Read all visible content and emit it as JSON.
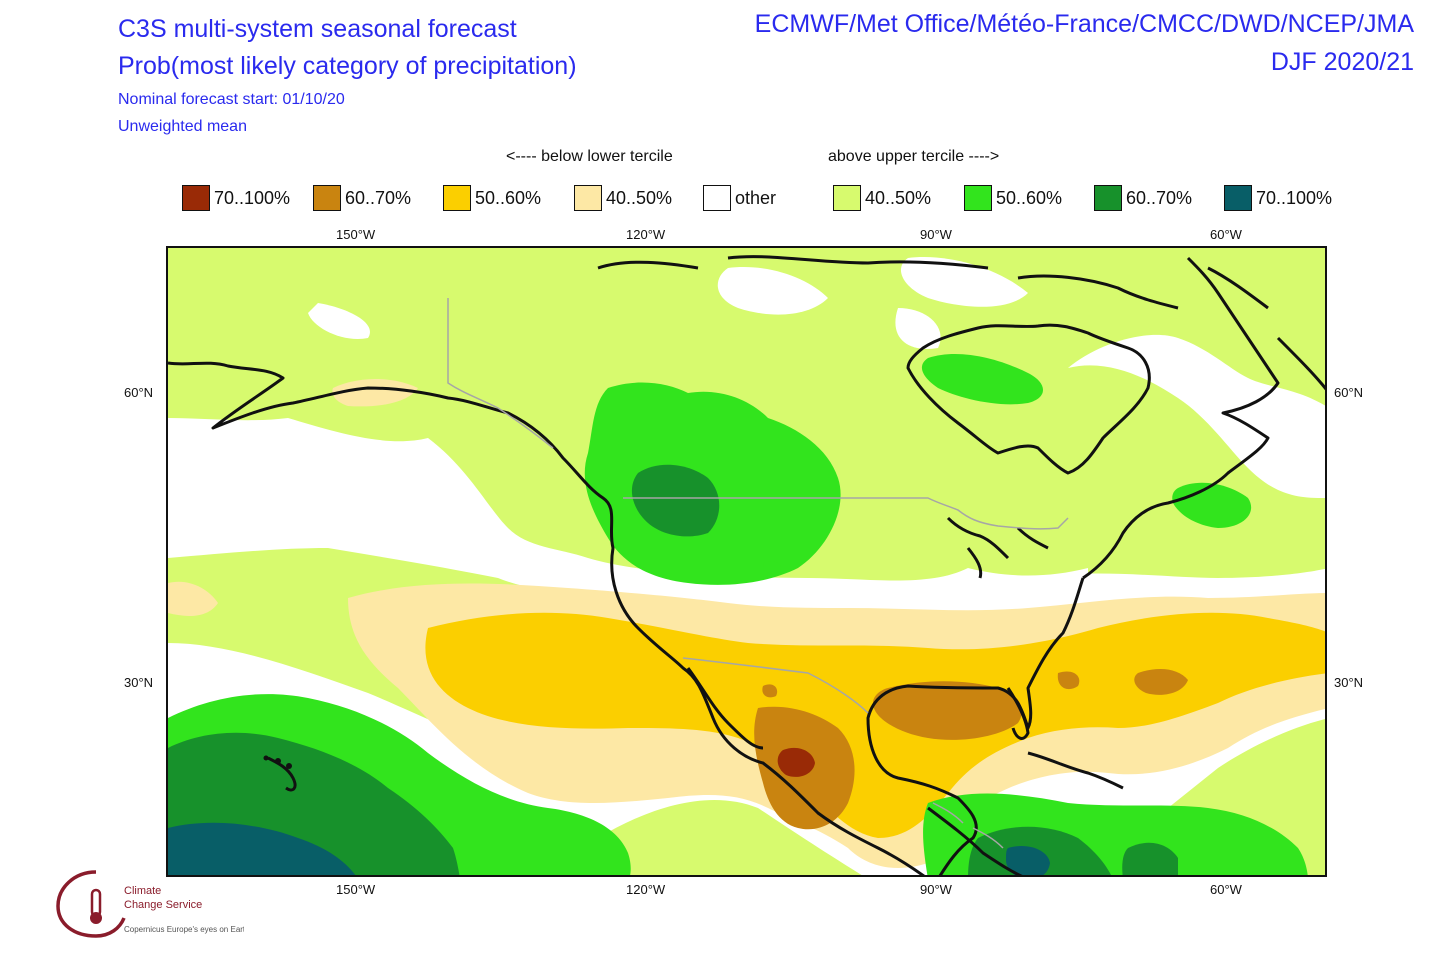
{
  "title": {
    "line1": "C3S multi-system seasonal forecast",
    "line2": "Prob(most likely category of precipitation)",
    "line3": "Nominal forecast start: 01/10/20",
    "line4": "Unweighted mean"
  },
  "systems": "ECMWF/Met Office/Météo-France/CMCC/DWD/NCEP/JMA",
  "season": "DJF 2020/21",
  "category_labels": {
    "below": "<---- below lower tercile",
    "above": "above upper tercile ---->"
  },
  "legend": [
    {
      "label": "70..100%",
      "color": "#992a06"
    },
    {
      "label": "60..70%",
      "color": "#c98410"
    },
    {
      "label": "50..60%",
      "color": "#fbcf00"
    },
    {
      "label": "40..50%",
      "color": "#fde8a5"
    },
    {
      "label": "other",
      "color": "#ffffff"
    },
    {
      "label": "40..50%",
      "color": "#d7fa6e"
    },
    {
      "label": "50..60%",
      "color": "#32e41d"
    },
    {
      "label": "60..70%",
      "color": "#17912b"
    },
    {
      "label": "70..100%",
      "color": "#085e67"
    }
  ],
  "axes": {
    "longitude_labels": [
      "150°W",
      "120°W",
      "90°W",
      "60°W"
    ],
    "latitude_labels": [
      "60°N",
      "30°N"
    ]
  },
  "logo": {
    "text1": "Climate",
    "text2": "Change Service",
    "text3": "Copernicus Europe's eyes on Earth"
  }
}
